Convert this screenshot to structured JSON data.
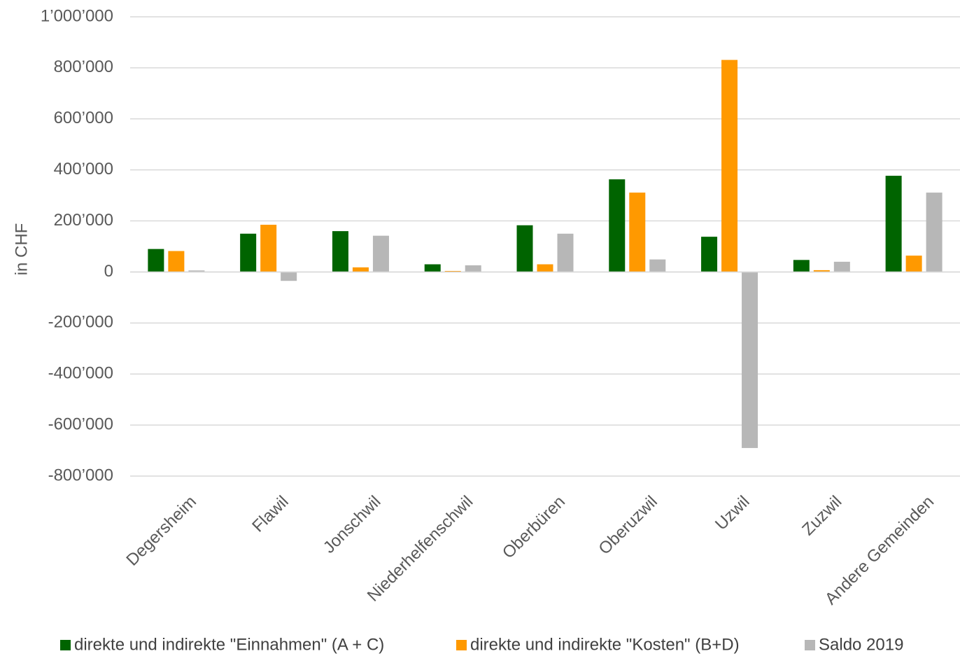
{
  "chart_data": {
    "type": "bar",
    "title": "",
    "xlabel": "",
    "ylabel": "in CHF",
    "ylim": [
      -800000,
      1000000
    ],
    "yticks": [
      1000000,
      800000,
      600000,
      400000,
      200000,
      0,
      -200000,
      -400000,
      -600000,
      -800000
    ],
    "ytick_labels": [
      "1’000’000",
      "800’000",
      "600’000",
      "400’000",
      "200’000",
      "0",
      "-200’000",
      "-400’000",
      "-600’000",
      "-800’000"
    ],
    "grid": true,
    "legend_position": "bottom",
    "categories": [
      "Degersheim",
      "Flawil",
      "Jonschwil",
      "Niederhelfenschwil",
      "Oberbüren",
      "Oberuzwil",
      "Uzwil",
      "Zuzwil",
      "Andere Gemeinden"
    ],
    "series": [
      {
        "name": "direkte und indirekte \"Einnahmen\" (A + C)",
        "color": "#006400",
        "values": [
          90000,
          150000,
          160000,
          30000,
          183000,
          363000,
          138000,
          47000,
          377000
        ]
      },
      {
        "name": "direkte und indirekte \"Kosten\" (B+D)",
        "color": "#ff9900",
        "values": [
          82000,
          185000,
          18000,
          4000,
          30000,
          311000,
          831000,
          7000,
          64000
        ]
      },
      {
        "name": "Saldo 2019",
        "color": "#b7b7b7",
        "values": [
          6000,
          -35000,
          142000,
          26000,
          150000,
          49000,
          -690000,
          40000,
          311000
        ]
      }
    ]
  }
}
